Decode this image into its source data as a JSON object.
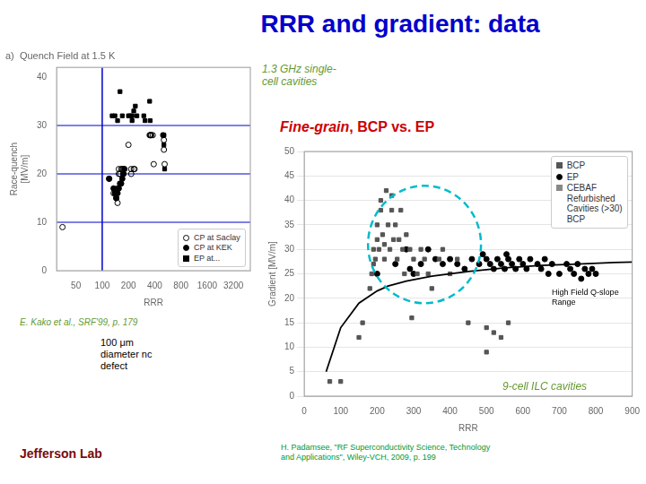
{
  "title": {
    "text": "RRR and gradient: data",
    "color": "#0000CC"
  },
  "annotations": [
    {
      "text": "1.3 GHz single-\ncell cavities",
      "color": "#669933"
    },
    {
      "text": [
        "Fine-grain",
        ", BCP vs. EP"
      ],
      "color": "#CC0000"
    },
    {
      "text": "E. Kako et al., SRF'99, p. 179",
      "color": "#669933"
    },
    {
      "text": "100 μm\ndiameter nc\ndefect",
      "color": "#000000"
    },
    {
      "text": "H. Padamsee, \"RF Superconductivity Science, Technology\nand Applications\", Wiley-VCH, 2009, p. 199",
      "color": "#009933"
    },
    {
      "text": "Jefferson Lab",
      "color": "#7A0A0A"
    }
  ],
  "chart_data": [
    {
      "type": "scatter",
      "title": "a)  Quench Field at 1.5 K",
      "x_label": "RRR",
      "y_label": "Race-quench\n[MV/m]",
      "log": "x",
      "xlim": [
        30,
        5000
      ],
      "xticks": [
        50,
        100,
        200,
        400,
        800,
        1600,
        3200
      ],
      "ylim": [
        0,
        42
      ],
      "yticks": [
        0,
        10,
        20,
        30,
        40
      ],
      "grid": false,
      "legend": "lower right",
      "reference_lines": {
        "y": [
          10,
          20,
          30
        ],
        "x": [
          100
        ],
        "color": "#0000CC"
      },
      "series": [
        {
          "name": "CP at Saclay",
          "color": "#000000",
          "marker": "circle_open",
          "values": [
            [
              35,
              9
            ],
            [
              120,
              19
            ],
            [
              135,
              16
            ],
            [
              140,
              16
            ],
            [
              145,
              15
            ],
            [
              150,
              14
            ],
            [
              150,
              17
            ],
            [
              155,
              21
            ],
            [
              155,
              20
            ],
            [
              160,
              20
            ],
            [
              165,
              21
            ],
            [
              170,
              21
            ],
            [
              175,
              21
            ],
            [
              175,
              20
            ],
            [
              200,
              26
            ],
            [
              215,
              21
            ],
            [
              215,
              20
            ],
            [
              230,
              21
            ],
            [
              235,
              21
            ],
            [
              350,
              28
            ],
            [
              355,
              28
            ],
            [
              360,
              28
            ],
            [
              365,
              28
            ],
            [
              380,
              28
            ],
            [
              390,
              22
            ],
            [
              500,
              28
            ],
            [
              510,
              27
            ],
            [
              510,
              25
            ],
            [
              520,
              22
            ]
          ]
        },
        {
          "name": "CP at KEK",
          "color": "#000000",
          "marker": "circle",
          "values": [
            [
              120,
              19
            ],
            [
              135,
              17
            ],
            [
              140,
              16
            ],
            [
              145,
              15
            ],
            [
              150,
              16
            ],
            [
              155,
              17
            ],
            [
              160,
              18
            ],
            [
              165,
              18
            ],
            [
              170,
              19
            ],
            [
              175,
              20
            ],
            [
              180,
              21
            ]
          ]
        },
        {
          "name": "EP at...",
          "color": "#000000",
          "marker": "square",
          "values": [
            [
              130,
              32
            ],
            [
              140,
              32
            ],
            [
              150,
              31
            ],
            [
              160,
              37
            ],
            [
              170,
              32
            ],
            [
              200,
              32
            ],
            [
              210,
              32
            ],
            [
              220,
              32
            ],
            [
              220,
              31
            ],
            [
              230,
              33
            ],
            [
              240,
              34
            ],
            [
              250,
              32
            ],
            [
              300,
              32
            ],
            [
              310,
              31
            ],
            [
              350,
              35
            ],
            [
              355,
              31
            ],
            [
              500,
              28
            ],
            [
              510,
              28
            ],
            [
              510,
              26
            ],
            [
              520,
              21
            ]
          ]
        }
      ]
    },
    {
      "type": "scatter",
      "x_label": "RRR",
      "y_label": "Gradient [MV/m]",
      "xlim": [
        0,
        900
      ],
      "xticks": [
        0,
        100,
        200,
        300,
        400,
        500,
        600,
        700,
        800,
        900
      ],
      "ylim": [
        0,
        50
      ],
      "yticks": [
        0,
        5,
        10,
        15,
        20,
        25,
        30,
        35,
        40,
        45,
        50
      ],
      "grid": "y",
      "legend": "upper right",
      "series": [
        {
          "name": "BCP",
          "color": "#555555",
          "marker": "square",
          "values": [
            [
              70,
              3
            ],
            [
              100,
              3
            ],
            [
              150,
              12
            ],
            [
              160,
              15
            ],
            [
              180,
              22
            ],
            [
              185,
              25
            ],
            [
              190,
              27
            ],
            [
              190,
              30
            ],
            [
              195,
              28
            ],
            [
              200,
              32
            ],
            [
              200,
              35
            ],
            [
              205,
              30
            ],
            [
              210,
              38
            ],
            [
              210,
              40
            ],
            [
              215,
              33
            ],
            [
              220,
              31
            ],
            [
              220,
              28
            ],
            [
              225,
              42
            ],
            [
              230,
              35
            ],
            [
              235,
              30
            ],
            [
              240,
              38
            ],
            [
              240,
              41
            ],
            [
              245,
              32
            ],
            [
              250,
              35
            ],
            [
              255,
              28
            ],
            [
              260,
              32
            ],
            [
              265,
              38
            ],
            [
              270,
              30
            ],
            [
              275,
              25
            ],
            [
              280,
              33
            ],
            [
              290,
              30
            ],
            [
              295,
              16
            ],
            [
              300,
              28
            ],
            [
              310,
              25
            ],
            [
              320,
              30
            ],
            [
              330,
              28
            ],
            [
              340,
              25
            ],
            [
              350,
              22
            ],
            [
              370,
              28
            ],
            [
              380,
              30
            ],
            [
              400,
              25
            ],
            [
              420,
              28
            ],
            [
              450,
              15
            ],
            [
              500,
              9
            ],
            [
              500,
              14
            ],
            [
              520,
              13
            ],
            [
              540,
              12
            ],
            [
              560,
              15
            ]
          ]
        },
        {
          "name": "EP",
          "color": "#000000",
          "marker": "circle",
          "values": [
            [
              200,
              25
            ],
            [
              250,
              27
            ],
            [
              280,
              30
            ],
            [
              290,
              26
            ],
            [
              300,
              25
            ],
            [
              320,
              27
            ],
            [
              340,
              30
            ],
            [
              360,
              28
            ],
            [
              380,
              27
            ],
            [
              400,
              28
            ],
            [
              420,
              27
            ],
            [
              440,
              26
            ],
            [
              460,
              28
            ],
            [
              480,
              27
            ],
            [
              490,
              29
            ],
            [
              500,
              28
            ],
            [
              510,
              27
            ],
            [
              520,
              26
            ],
            [
              530,
              28
            ],
            [
              540,
              27
            ],
            [
              550,
              26
            ],
            [
              555,
              29
            ],
            [
              560,
              28
            ],
            [
              570,
              27
            ],
            [
              580,
              26
            ],
            [
              590,
              28
            ],
            [
              600,
              27
            ],
            [
              610,
              26
            ],
            [
              620,
              28
            ],
            [
              640,
              27
            ],
            [
              650,
              26
            ],
            [
              660,
              28
            ],
            [
              670,
              25
            ],
            [
              680,
              27
            ],
            [
              700,
              25
            ],
            [
              720,
              27
            ],
            [
              730,
              26
            ],
            [
              740,
              25
            ],
            [
              750,
              27
            ],
            [
              760,
              24
            ],
            [
              770,
              26
            ],
            [
              780,
              25
            ],
            [
              790,
              26
            ],
            [
              800,
              25
            ]
          ]
        },
        {
          "name": "CEBAF\nRefurbished\nCavities (>30)\nBCP",
          "color": "#888888",
          "marker": "square",
          "values": []
        },
        {
          "type": "line",
          "color": "#000000",
          "line_style": "solid",
          "values": [
            [
              60,
              5
            ],
            [
              100,
              14
            ],
            [
              150,
              19
            ],
            [
              200,
              21.5
            ],
            [
              230,
              22.5
            ],
            [
              280,
              23.5
            ],
            [
              350,
              24.5
            ],
            [
              450,
              25.5
            ],
            [
              550,
              26.2
            ],
            [
              650,
              26.7
            ],
            [
              750,
              27.0
            ],
            [
              850,
              27.3
            ],
            [
              900,
              27.4
            ]
          ]
        }
      ],
      "ellipse": {
        "cx": 330,
        "cy": 31,
        "width": 310,
        "height": 24,
        "color": "#00BBCC",
        "line_style": "dashed"
      },
      "annotations": [
        {
          "text": "High Field Q-slope\nRange",
          "color": "#000000"
        },
        {
          "text": "9-cell ILC cavities",
          "color": "#669933"
        }
      ]
    }
  ]
}
